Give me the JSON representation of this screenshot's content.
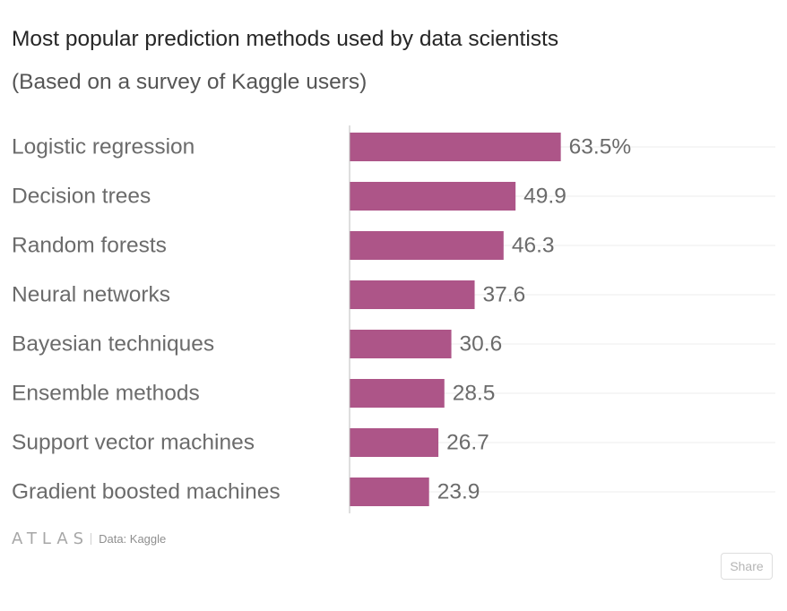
{
  "title": "Most popular prediction methods used by data scientists",
  "subtitle": "(Based on a survey of Kaggle users)",
  "footer": {
    "logo": "ATLAS",
    "source": "Data: Kaggle"
  },
  "share_label": "Share",
  "colors": {
    "bar": "#ad5588",
    "label": "#6b6b6b",
    "value": "#6b6b6b",
    "axis": "#bdbdbd",
    "grid": "#eeeeee"
  },
  "chart_data": {
    "type": "bar",
    "orientation": "horizontal",
    "categories": [
      "Logistic regression",
      "Decision trees",
      "Random forests",
      "Neural networks",
      "Bayesian techniques",
      "Ensemble methods",
      "Support vector machines",
      "Gradient boosted machines"
    ],
    "values": [
      63.5,
      49.9,
      46.3,
      37.6,
      30.6,
      28.5,
      26.7,
      23.9
    ],
    "value_labels": [
      "63.5%",
      "49.9",
      "46.3",
      "37.6",
      "30.6",
      "28.5",
      "26.7",
      "23.9"
    ],
    "xlim": [
      0,
      128
    ],
    "grid": true,
    "legend": "none"
  }
}
